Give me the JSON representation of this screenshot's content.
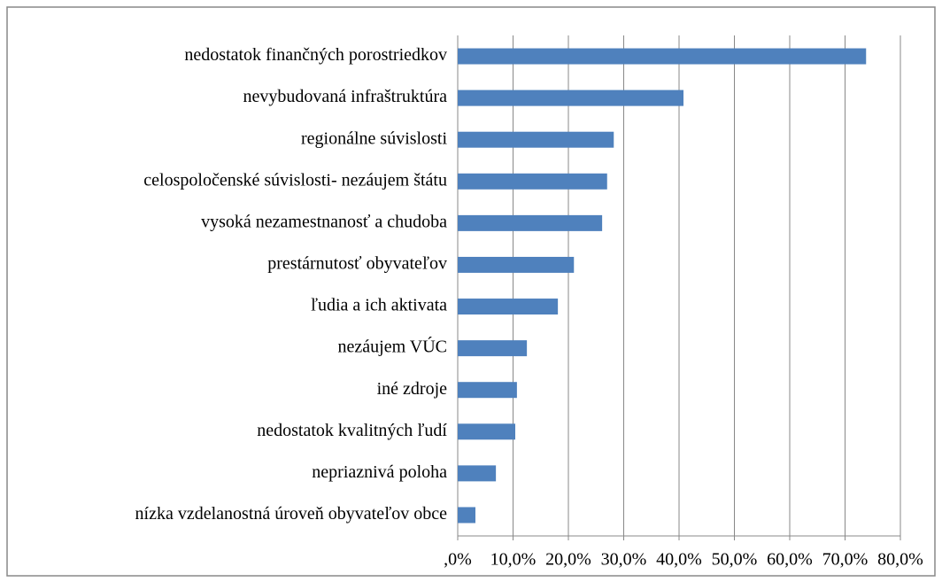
{
  "chart_data": {
    "type": "bar",
    "orientation": "horizontal",
    "categories": [
      "nedostatok finančných porostriedkov",
      "nevybudovaná infraštruktúra",
      "regionálne súvislosti",
      "celospoločenské súvislosti- nezáujem štátu",
      "vysoká nezamestnanosť a chudoba",
      "prestárnutosť obyvateľov",
      "ľudia a ich aktivata",
      "nezáujem VÚC",
      "iné zdroje",
      "nedostatok kvalitných ľudí",
      "nepriaznivá poloha",
      "nízka vzdelanostná úroveň obyvateľov obce"
    ],
    "values": [
      73.8,
      40.8,
      28.2,
      27.0,
      26.1,
      21.0,
      18.1,
      12.5,
      10.7,
      10.4,
      6.9,
      3.2
    ],
    "color": "#4f81bd",
    "xlim": [
      0,
      80
    ],
    "xticks": [
      {
        "value": 0,
        "label": ",0%"
      },
      {
        "value": 10,
        "label": "10,0%"
      },
      {
        "value": 20,
        "label": "20,0%"
      },
      {
        "value": 30,
        "label": "30,0%"
      },
      {
        "value": 40,
        "label": "40,0%"
      },
      {
        "value": 50,
        "label": "50,0%"
      },
      {
        "value": 60,
        "label": "60,0%"
      },
      {
        "value": 70,
        "label": "70,0%"
      },
      {
        "value": 80,
        "label": "80,0%"
      }
    ],
    "grid": true
  }
}
